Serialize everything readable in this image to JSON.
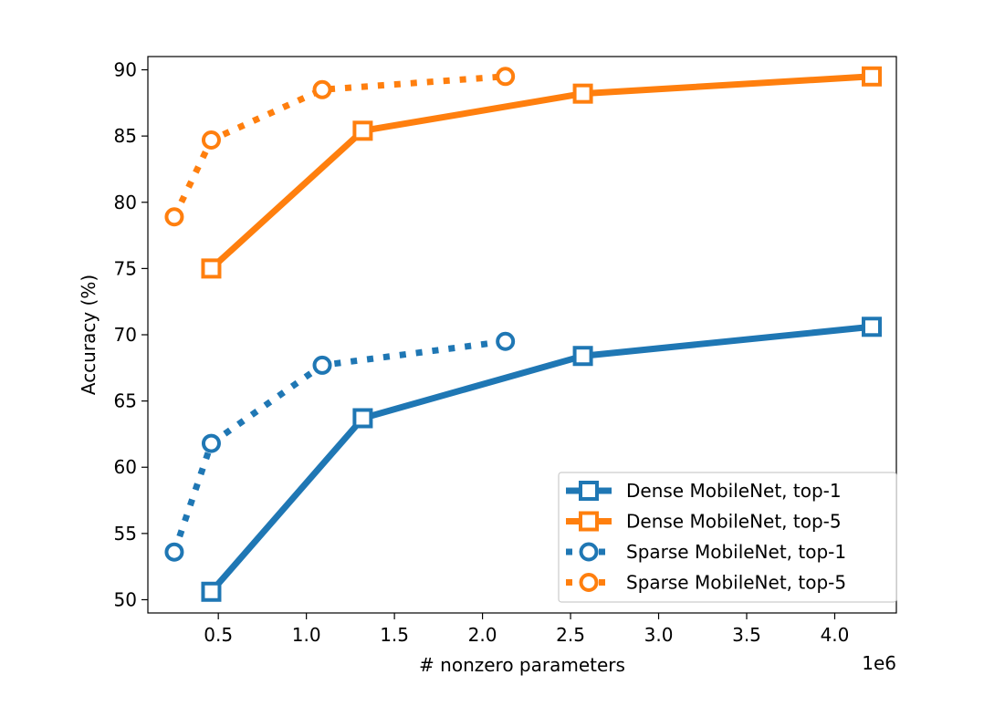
{
  "chart_data": {
    "type": "line",
    "title": "",
    "xlabel": "# nonzero parameters",
    "ylabel": "Accuracy (%)",
    "x_offset_label": "1e6",
    "xlim": [
      0.1,
      4.35
    ],
    "ylim": [
      49,
      91
    ],
    "x_ticks": [
      0.5,
      1.0,
      1.5,
      2.0,
      2.5,
      3.0,
      3.5,
      4.0
    ],
    "x_tick_labels": [
      "0.5",
      "1.0",
      "1.5",
      "2.0",
      "2.5",
      "3.0",
      "3.5",
      "4.0"
    ],
    "y_ticks": [
      50,
      55,
      60,
      65,
      70,
      75,
      80,
      85,
      90
    ],
    "y_tick_labels": [
      "50",
      "55",
      "60",
      "65",
      "70",
      "75",
      "80",
      "85",
      "90"
    ],
    "grid": false,
    "legend_position": "lower-right",
    "series": [
      {
        "name": "Dense MobileNet, top-1",
        "color": "#1f77b4",
        "line_style": "solid",
        "marker": "square",
        "x": [
          0.46,
          1.32,
          2.57,
          4.21
        ],
        "y": [
          50.6,
          63.7,
          68.4,
          70.6
        ]
      },
      {
        "name": "Dense MobileNet, top-5",
        "color": "#ff7f0e",
        "line_style": "solid",
        "marker": "square",
        "x": [
          0.46,
          1.32,
          2.57,
          4.21
        ],
        "y": [
          75.0,
          85.4,
          88.2,
          89.5
        ]
      },
      {
        "name": "Sparse MobileNet, top-1",
        "color": "#1f77b4",
        "line_style": "dotted",
        "marker": "circle",
        "x": [
          0.25,
          0.46,
          1.09,
          2.13
        ],
        "y": [
          53.6,
          61.8,
          67.7,
          69.5
        ]
      },
      {
        "name": "Sparse MobileNet, top-5",
        "color": "#ff7f0e",
        "line_style": "dotted",
        "marker": "circle",
        "x": [
          0.25,
          0.46,
          1.09,
          2.13
        ],
        "y": [
          78.9,
          84.7,
          88.5,
          89.5
        ]
      }
    ]
  }
}
